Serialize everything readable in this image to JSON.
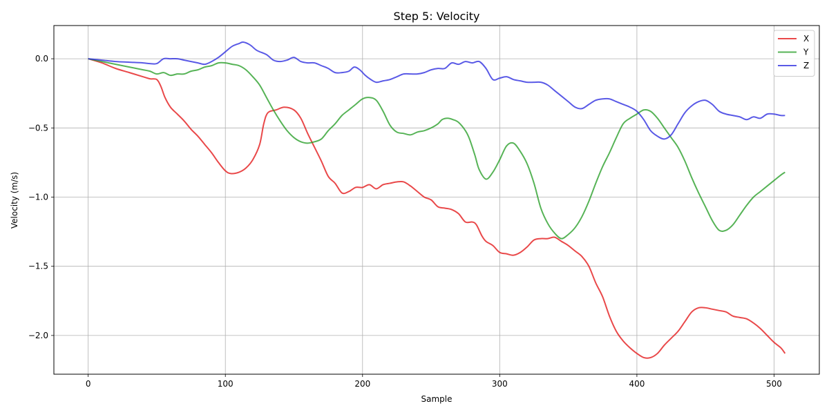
{
  "chart_data": {
    "type": "line",
    "title": "Step 5: Velocity",
    "xlabel": "Sample",
    "ylabel": "Velocity (m/s)",
    "xlim": [
      -25,
      533
    ],
    "ylim": [
      -2.28,
      0.24
    ],
    "xticks": [
      0,
      100,
      200,
      300,
      400,
      500
    ],
    "xtick_labels": [
      "0",
      "100",
      "200",
      "300",
      "400",
      "500"
    ],
    "yticks": [
      0.0,
      -0.5,
      -1.0,
      -1.5,
      -2.0
    ],
    "ytick_labels": [
      "0.0",
      "−0.5",
      "−1.0",
      "−1.5",
      "−2.0"
    ],
    "grid": true,
    "legend_position": "top-right",
    "series": [
      {
        "name": "X",
        "color": "#e41a1c",
        "points": [
          [
            0,
            0
          ],
          [
            10,
            -0.03
          ],
          [
            20,
            -0.07
          ],
          [
            30,
            -0.1
          ],
          [
            40,
            -0.13
          ],
          [
            45,
            -0.145
          ],
          [
            50,
            -0.15
          ],
          [
            53,
            -0.2
          ],
          [
            56,
            -0.28
          ],
          [
            60,
            -0.35
          ],
          [
            65,
            -0.4
          ],
          [
            70,
            -0.45
          ],
          [
            75,
            -0.51
          ],
          [
            80,
            -0.56
          ],
          [
            85,
            -0.62
          ],
          [
            90,
            -0.68
          ],
          [
            95,
            -0.75
          ],
          [
            100,
            -0.81
          ],
          [
            104,
            -0.83
          ],
          [
            110,
            -0.82
          ],
          [
            115,
            -0.79
          ],
          [
            120,
            -0.73
          ],
          [
            125,
            -0.62
          ],
          [
            128,
            -0.47
          ],
          [
            131,
            -0.39
          ],
          [
            137,
            -0.37
          ],
          [
            143,
            -0.35
          ],
          [
            150,
            -0.37
          ],
          [
            155,
            -0.43
          ],
          [
            160,
            -0.54
          ],
          [
            165,
            -0.64
          ],
          [
            170,
            -0.74
          ],
          [
            175,
            -0.85
          ],
          [
            180,
            -0.9
          ],
          [
            185,
            -0.97
          ],
          [
            190,
            -0.96
          ],
          [
            195,
            -0.93
          ],
          [
            200,
            -0.93
          ],
          [
            205,
            -0.91
          ],
          [
            210,
            -0.94
          ],
          [
            215,
            -0.91
          ],
          [
            220,
            -0.9
          ],
          [
            225,
            -0.89
          ],
          [
            230,
            -0.89
          ],
          [
            235,
            -0.92
          ],
          [
            240,
            -0.96
          ],
          [
            245,
            -1.0
          ],
          [
            250,
            -1.02
          ],
          [
            255,
            -1.07
          ],
          [
            260,
            -1.08
          ],
          [
            265,
            -1.09
          ],
          [
            270,
            -1.12
          ],
          [
            275,
            -1.18
          ],
          [
            280,
            -1.18
          ],
          [
            283,
            -1.2
          ],
          [
            287,
            -1.28
          ],
          [
            290,
            -1.32
          ],
          [
            295,
            -1.35
          ],
          [
            300,
            -1.4
          ],
          [
            305,
            -1.41
          ],
          [
            310,
            -1.42
          ],
          [
            315,
            -1.4
          ],
          [
            320,
            -1.36
          ],
          [
            325,
            -1.31
          ],
          [
            330,
            -1.3
          ],
          [
            335,
            -1.3
          ],
          [
            340,
            -1.29
          ],
          [
            345,
            -1.32
          ],
          [
            350,
            -1.35
          ],
          [
            355,
            -1.39
          ],
          [
            360,
            -1.43
          ],
          [
            365,
            -1.5
          ],
          [
            370,
            -1.62
          ],
          [
            375,
            -1.72
          ],
          [
            380,
            -1.86
          ],
          [
            385,
            -1.97
          ],
          [
            390,
            -2.04
          ],
          [
            395,
            -2.09
          ],
          [
            400,
            -2.13
          ],
          [
            405,
            -2.16
          ],
          [
            410,
            -2.16
          ],
          [
            415,
            -2.13
          ],
          [
            420,
            -2.07
          ],
          [
            425,
            -2.02
          ],
          [
            430,
            -1.97
          ],
          [
            435,
            -1.9
          ],
          [
            440,
            -1.83
          ],
          [
            445,
            -1.8
          ],
          [
            450,
            -1.8
          ],
          [
            455,
            -1.81
          ],
          [
            460,
            -1.82
          ],
          [
            465,
            -1.83
          ],
          [
            470,
            -1.86
          ],
          [
            475,
            -1.87
          ],
          [
            480,
            -1.88
          ],
          [
            485,
            -1.91
          ],
          [
            490,
            -1.95
          ],
          [
            495,
            -2.0
          ],
          [
            500,
            -2.05
          ],
          [
            505,
            -2.09
          ],
          [
            508,
            -2.13
          ]
        ]
      },
      {
        "name": "Y",
        "color": "#2ca02c",
        "points": [
          [
            0,
            0
          ],
          [
            10,
            -0.02
          ],
          [
            20,
            -0.04
          ],
          [
            30,
            -0.06
          ],
          [
            40,
            -0.08
          ],
          [
            45,
            -0.09
          ],
          [
            50,
            -0.11
          ],
          [
            55,
            -0.1
          ],
          [
            60,
            -0.12
          ],
          [
            65,
            -0.11
          ],
          [
            70,
            -0.11
          ],
          [
            75,
            -0.09
          ],
          [
            80,
            -0.08
          ],
          [
            85,
            -0.06
          ],
          [
            90,
            -0.05
          ],
          [
            95,
            -0.03
          ],
          [
            100,
            -0.03
          ],
          [
            105,
            -0.04
          ],
          [
            110,
            -0.05
          ],
          [
            115,
            -0.08
          ],
          [
            120,
            -0.13
          ],
          [
            125,
            -0.19
          ],
          [
            130,
            -0.28
          ],
          [
            135,
            -0.37
          ],
          [
            140,
            -0.45
          ],
          [
            145,
            -0.52
          ],
          [
            150,
            -0.57
          ],
          [
            155,
            -0.6
          ],
          [
            160,
            -0.61
          ],
          [
            165,
            -0.6
          ],
          [
            170,
            -0.58
          ],
          [
            175,
            -0.52
          ],
          [
            180,
            -0.47
          ],
          [
            185,
            -0.41
          ],
          [
            190,
            -0.37
          ],
          [
            195,
            -0.33
          ],
          [
            200,
            -0.29
          ],
          [
            205,
            -0.28
          ],
          [
            210,
            -0.3
          ],
          [
            215,
            -0.38
          ],
          [
            220,
            -0.48
          ],
          [
            225,
            -0.53
          ],
          [
            230,
            -0.54
          ],
          [
            235,
            -0.55
          ],
          [
            240,
            -0.53
          ],
          [
            245,
            -0.52
          ],
          [
            250,
            -0.5
          ],
          [
            255,
            -0.47
          ],
          [
            258,
            -0.44
          ],
          [
            262,
            -0.43
          ],
          [
            266,
            -0.44
          ],
          [
            270,
            -0.46
          ],
          [
            275,
            -0.52
          ],
          [
            278,
            -0.58
          ],
          [
            282,
            -0.7
          ],
          [
            285,
            -0.8
          ],
          [
            290,
            -0.87
          ],
          [
            295,
            -0.82
          ],
          [
            300,
            -0.73
          ],
          [
            305,
            -0.63
          ],
          [
            310,
            -0.61
          ],
          [
            315,
            -0.67
          ],
          [
            320,
            -0.76
          ],
          [
            325,
            -0.9
          ],
          [
            330,
            -1.08
          ],
          [
            335,
            -1.19
          ],
          [
            340,
            -1.26
          ],
          [
            345,
            -1.3
          ],
          [
            350,
            -1.27
          ],
          [
            355,
            -1.22
          ],
          [
            360,
            -1.14
          ],
          [
            365,
            -1.03
          ],
          [
            370,
            -0.9
          ],
          [
            375,
            -0.78
          ],
          [
            380,
            -0.68
          ],
          [
            385,
            -0.57
          ],
          [
            390,
            -0.47
          ],
          [
            395,
            -0.43
          ],
          [
            400,
            -0.4
          ],
          [
            405,
            -0.37
          ],
          [
            410,
            -0.38
          ],
          [
            415,
            -0.43
          ],
          [
            420,
            -0.5
          ],
          [
            425,
            -0.57
          ],
          [
            430,
            -0.64
          ],
          [
            435,
            -0.74
          ],
          [
            440,
            -0.86
          ],
          [
            445,
            -0.97
          ],
          [
            450,
            -1.07
          ],
          [
            455,
            -1.17
          ],
          [
            460,
            -1.24
          ],
          [
            465,
            -1.24
          ],
          [
            470,
            -1.2
          ],
          [
            475,
            -1.13
          ],
          [
            480,
            -1.06
          ],
          [
            485,
            -1.0
          ],
          [
            490,
            -0.96
          ],
          [
            495,
            -0.92
          ],
          [
            500,
            -0.88
          ],
          [
            505,
            -0.84
          ],
          [
            508,
            -0.82
          ]
        ]
      },
      {
        "name": "Z",
        "color": "#3030e0",
        "points": [
          [
            0,
            0
          ],
          [
            10,
            -0.01
          ],
          [
            20,
            -0.02
          ],
          [
            30,
            -0.025
          ],
          [
            40,
            -0.03
          ],
          [
            45,
            -0.035
          ],
          [
            50,
            -0.035
          ],
          [
            55,
            0.0
          ],
          [
            60,
            0.0
          ],
          [
            65,
            0.0
          ],
          [
            70,
            -0.01
          ],
          [
            75,
            -0.02
          ],
          [
            80,
            -0.03
          ],
          [
            85,
            -0.04
          ],
          [
            90,
            -0.02
          ],
          [
            95,
            0.01
          ],
          [
            100,
            0.05
          ],
          [
            105,
            0.09
          ],
          [
            110,
            0.11
          ],
          [
            113,
            0.12
          ],
          [
            118,
            0.1
          ],
          [
            123,
            0.06
          ],
          [
            130,
            0.03
          ],
          [
            135,
            -0.01
          ],
          [
            140,
            -0.02
          ],
          [
            145,
            -0.01
          ],
          [
            150,
            0.01
          ],
          [
            155,
            -0.02
          ],
          [
            160,
            -0.03
          ],
          [
            165,
            -0.03
          ],
          [
            170,
            -0.05
          ],
          [
            175,
            -0.07
          ],
          [
            180,
            -0.1
          ],
          [
            185,
            -0.1
          ],
          [
            190,
            -0.09
          ],
          [
            194,
            -0.06
          ],
          [
            198,
            -0.08
          ],
          [
            202,
            -0.12
          ],
          [
            206,
            -0.15
          ],
          [
            210,
            -0.17
          ],
          [
            215,
            -0.16
          ],
          [
            220,
            -0.15
          ],
          [
            225,
            -0.13
          ],
          [
            230,
            -0.11
          ],
          [
            235,
            -0.11
          ],
          [
            240,
            -0.11
          ],
          [
            245,
            -0.1
          ],
          [
            250,
            -0.08
          ],
          [
            255,
            -0.07
          ],
          [
            260,
            -0.07
          ],
          [
            265,
            -0.03
          ],
          [
            270,
            -0.04
          ],
          [
            275,
            -0.02
          ],
          [
            280,
            -0.03
          ],
          [
            285,
            -0.02
          ],
          [
            290,
            -0.07
          ],
          [
            295,
            -0.15
          ],
          [
            300,
            -0.14
          ],
          [
            305,
            -0.13
          ],
          [
            310,
            -0.15
          ],
          [
            315,
            -0.16
          ],
          [
            320,
            -0.17
          ],
          [
            325,
            -0.17
          ],
          [
            330,
            -0.17
          ],
          [
            335,
            -0.19
          ],
          [
            340,
            -0.23
          ],
          [
            345,
            -0.27
          ],
          [
            350,
            -0.31
          ],
          [
            355,
            -0.35
          ],
          [
            360,
            -0.36
          ],
          [
            365,
            -0.33
          ],
          [
            370,
            -0.3
          ],
          [
            375,
            -0.29
          ],
          [
            380,
            -0.29
          ],
          [
            385,
            -0.31
          ],
          [
            390,
            -0.33
          ],
          [
            395,
            -0.35
          ],
          [
            400,
            -0.38
          ],
          [
            405,
            -0.44
          ],
          [
            410,
            -0.52
          ],
          [
            415,
            -0.56
          ],
          [
            420,
            -0.58
          ],
          [
            425,
            -0.55
          ],
          [
            430,
            -0.47
          ],
          [
            435,
            -0.39
          ],
          [
            440,
            -0.34
          ],
          [
            445,
            -0.31
          ],
          [
            450,
            -0.3
          ],
          [
            455,
            -0.33
          ],
          [
            460,
            -0.38
          ],
          [
            465,
            -0.4
          ],
          [
            470,
            -0.41
          ],
          [
            475,
            -0.42
          ],
          [
            480,
            -0.44
          ],
          [
            485,
            -0.42
          ],
          [
            490,
            -0.43
          ],
          [
            495,
            -0.4
          ],
          [
            500,
            -0.4
          ],
          [
            505,
            -0.41
          ],
          [
            508,
            -0.41
          ]
        ]
      }
    ]
  }
}
